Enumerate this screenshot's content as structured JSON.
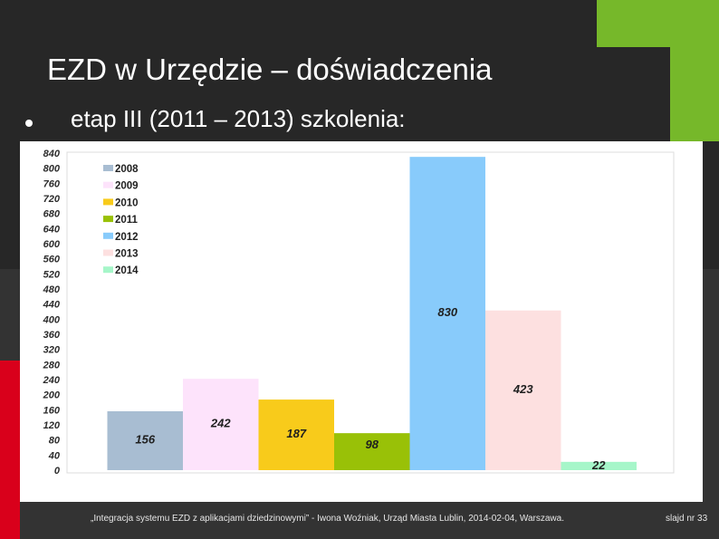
{
  "slide": {
    "title": "EZD w Urzędzie – doświadczenia",
    "bullet": "etap III (2011 – 2013) szkolenia:"
  },
  "footer": {
    "source": "„Integracja systemu EZD z aplikacjami dziedzinowymi” - Iwona Woźniak, Urząd Miasta Lublin, 2014-02-04, Warszawa.",
    "slide_number": "slajd nr 33"
  },
  "chart_data": {
    "type": "bar",
    "title": "",
    "xlabel": "",
    "ylabel": "",
    "ylim": [
      0,
      840
    ],
    "ytick_step": 40,
    "grid": false,
    "legend_position": "top-left",
    "categories": [
      "2008",
      "2009",
      "2010",
      "2011",
      "2012",
      "2013",
      "2014"
    ],
    "values": [
      156,
      242,
      187,
      98,
      830,
      423,
      22
    ],
    "value_labels": [
      "156",
      "242",
      "187",
      "98",
      "830",
      "423",
      "22"
    ],
    "colors": [
      "#a8bdd2",
      "#fde3fb",
      "#f8cb1b",
      "#99c107",
      "#88cbfb",
      "#fde0e0",
      "#a6f6c9"
    ]
  }
}
